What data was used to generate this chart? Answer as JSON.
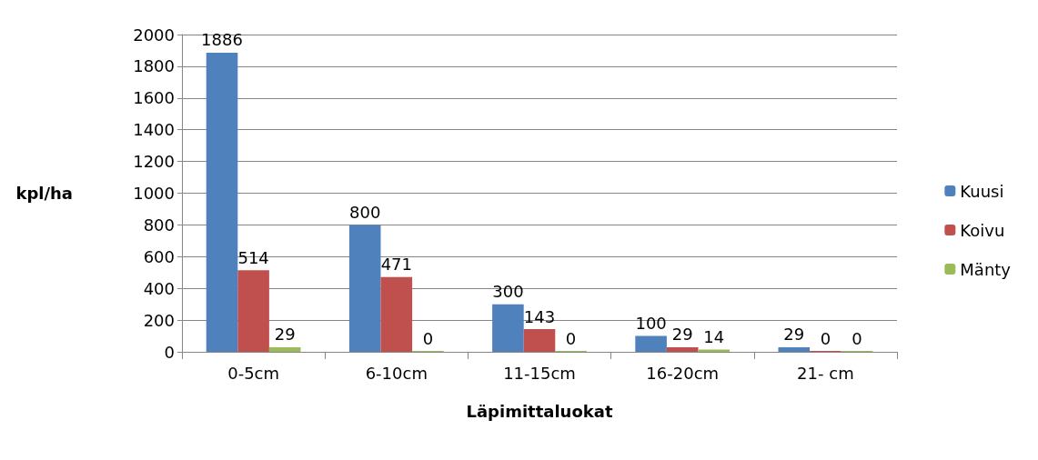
{
  "chart_data": {
    "type": "bar",
    "xlabel": "Läpimittaluokat",
    "ylabel": "kpl/ha",
    "categories": [
      "0-5cm",
      "6-10cm",
      "11-15cm",
      "16-20cm",
      "21- cm"
    ],
    "series": [
      {
        "name": "Kuusi",
        "color": "#4f81bd",
        "values": [
          1886,
          800,
          300,
          100,
          29
        ]
      },
      {
        "name": "Koivu",
        "color": "#c0504d",
        "values": [
          514,
          471,
          143,
          29,
          0
        ]
      },
      {
        "name": "Mänty",
        "color": "#9bbb59",
        "values": [
          29,
          0,
          0,
          14,
          0
        ]
      }
    ],
    "ylim": [
      0,
      2000
    ],
    "yticks": [
      0,
      200,
      400,
      600,
      800,
      1000,
      1200,
      1400,
      1600,
      1800,
      2000
    ],
    "grid": "y",
    "legend": "right",
    "data_labels": true
  }
}
